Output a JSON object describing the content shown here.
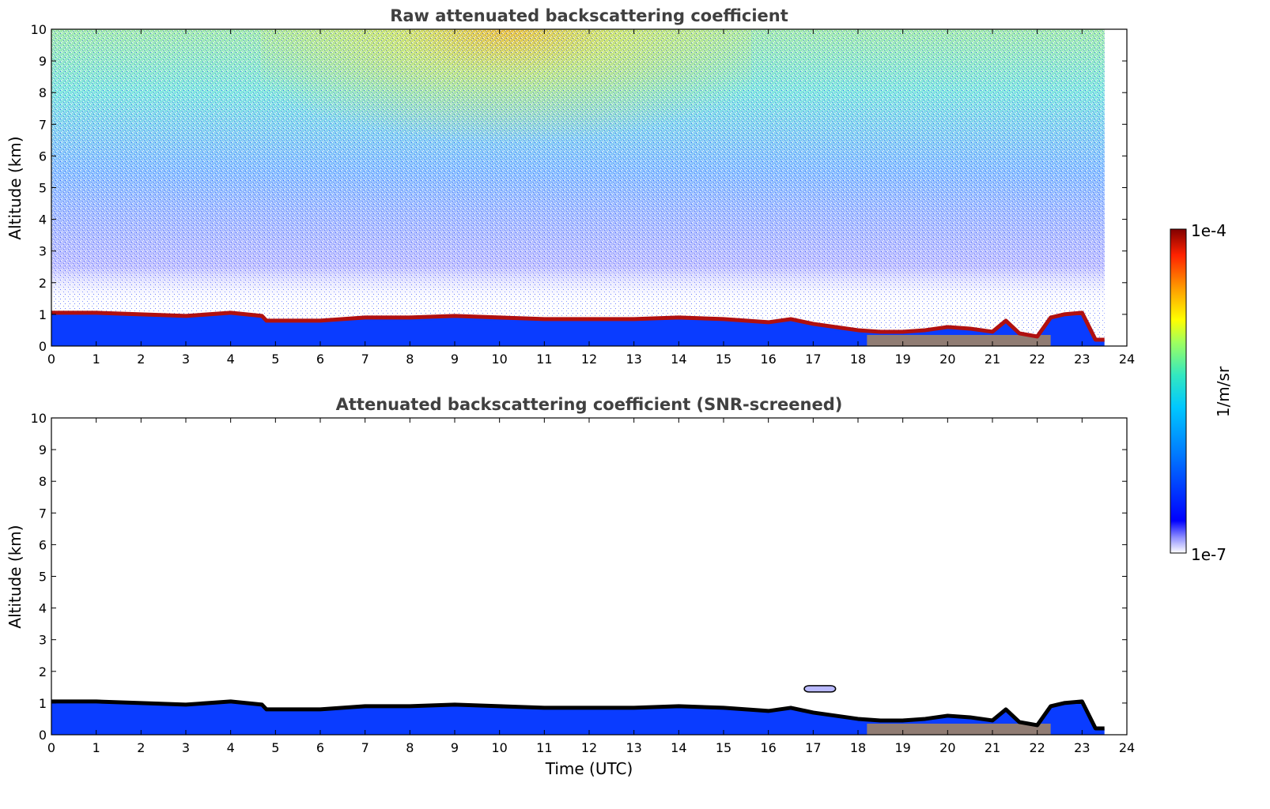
{
  "chart_data": [
    {
      "type": "heatmap",
      "title": "Raw attenuated backscattering coefficient",
      "ylabel": "Altitude (km)",
      "xlabel": "",
      "xlim": [
        0,
        24
      ],
      "ylim": [
        0,
        10
      ],
      "x_ticks": [
        "0",
        "1",
        "2",
        "3",
        "4",
        "5",
        "6",
        "7",
        "8",
        "9",
        "10",
        "11",
        "12",
        "13",
        "14",
        "15",
        "16",
        "17",
        "18",
        "19",
        "20",
        "21",
        "22",
        "23",
        "24"
      ],
      "y_ticks": [
        "0",
        "1",
        "2",
        "3",
        "4",
        "5",
        "6",
        "7",
        "8",
        "9",
        "10"
      ],
      "data_end_time": 23.5,
      "boundary_layer_top_km": [
        [
          0,
          1.05
        ],
        [
          1,
          1.05
        ],
        [
          2,
          1.0
        ],
        [
          3,
          0.95
        ],
        [
          4,
          1.05
        ],
        [
          4.7,
          0.95
        ],
        [
          4.8,
          0.8
        ],
        [
          6,
          0.8
        ],
        [
          7,
          0.9
        ],
        [
          8,
          0.9
        ],
        [
          9,
          0.95
        ],
        [
          10,
          0.9
        ],
        [
          11,
          0.85
        ],
        [
          12,
          0.85
        ],
        [
          13,
          0.85
        ],
        [
          14,
          0.9
        ],
        [
          15,
          0.85
        ],
        [
          16,
          0.75
        ],
        [
          16.5,
          0.85
        ],
        [
          17,
          0.7
        ],
        [
          17.5,
          0.6
        ],
        [
          18,
          0.5
        ],
        [
          18.5,
          0.45
        ],
        [
          19,
          0.45
        ],
        [
          19.5,
          0.5
        ],
        [
          20,
          0.6
        ],
        [
          20.5,
          0.55
        ],
        [
          21,
          0.45
        ],
        [
          21.3,
          0.8
        ],
        [
          21.6,
          0.4
        ],
        [
          22,
          0.3
        ],
        [
          22.3,
          0.9
        ],
        [
          22.6,
          1.0
        ],
        [
          23,
          1.05
        ],
        [
          23.3,
          0.2
        ],
        [
          23.5,
          0.2
        ]
      ],
      "noise_region": "high background signal above about 1.5 km, strongest near 9-10 km between 8 and 12 UTC"
    },
    {
      "type": "heatmap",
      "title": "Attenuated backscattering coefficient (SNR-screened)",
      "ylabel": "Altitude (km)",
      "xlabel": "Time (UTC)",
      "xlim": [
        0,
        24
      ],
      "ylim": [
        0,
        10
      ],
      "x_ticks": [
        "0",
        "1",
        "2",
        "3",
        "4",
        "5",
        "6",
        "7",
        "8",
        "9",
        "10",
        "11",
        "12",
        "13",
        "14",
        "15",
        "16",
        "17",
        "18",
        "19",
        "20",
        "21",
        "22",
        "23",
        "24"
      ],
      "y_ticks": [
        "0",
        "1",
        "2",
        "3",
        "4",
        "5",
        "6",
        "7",
        "8",
        "9",
        "10"
      ],
      "data_end_time": 23.5,
      "boundary_layer_top_km": "same as raw panel",
      "elevated_layer": {
        "time_range": [
          16.8,
          17.5
        ],
        "altitude_km": 1.45
      }
    }
  ],
  "colorbar": {
    "label": "1/m/sr",
    "max_label": "1e-4",
    "min_label": "1e-7",
    "scale": "log",
    "colormap": [
      "#ffffff",
      "#0000ff",
      "#0077ff",
      "#00c8ff",
      "#33e8c0",
      "#9fff5f",
      "#ffff00",
      "#ff9900",
      "#ff3300",
      "#800000"
    ]
  },
  "colors": {
    "title": "#404040",
    "axis": "#000000",
    "boundary_band": "#b01010",
    "screened_edge": "#000000",
    "aerosol_core": "#0a3cff"
  }
}
